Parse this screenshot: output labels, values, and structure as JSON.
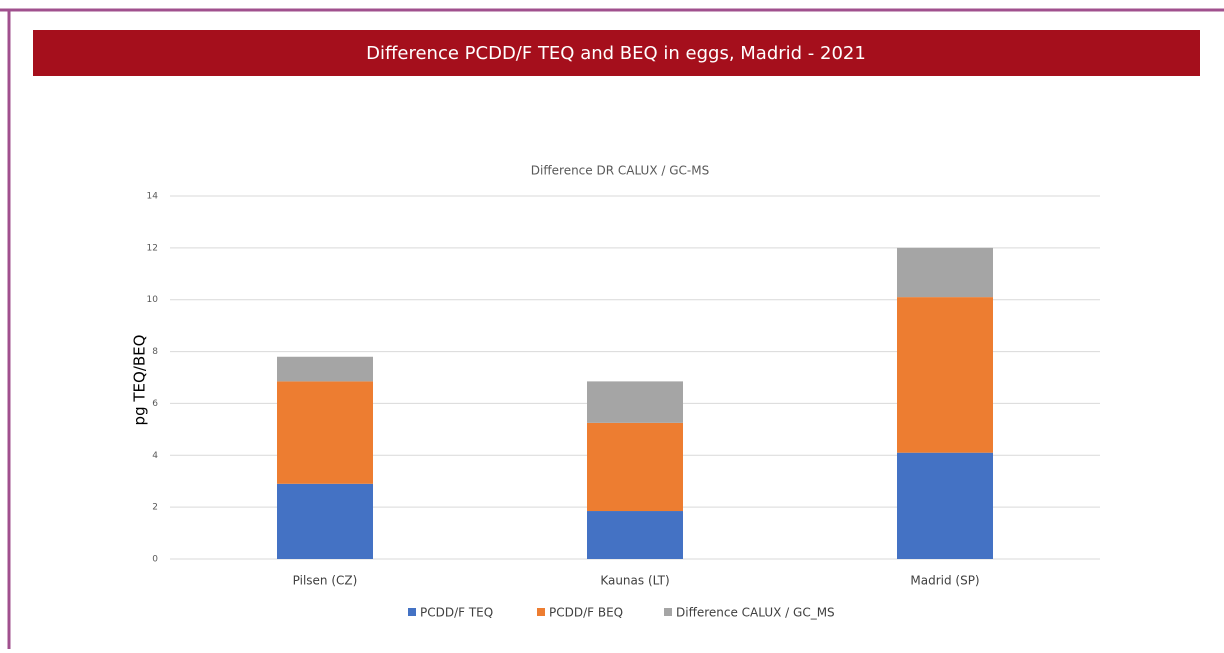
{
  "header": {
    "title": "Difference PCDD/F TEQ and BEQ in eggs, Madrid - 2021"
  },
  "chart_data": {
    "type": "stacked_bar",
    "title": "Difference DR CALUX / GC-MS",
    "y_label": "pg TEQ/BEQ",
    "categories": [
      "Pilsen (CZ)",
      "Kaunas (LT)",
      "Madrid (SP)"
    ],
    "series": [
      {
        "name": "PCDD/F TEQ",
        "color": "#4472c4",
        "values": [
          2.9,
          1.85,
          4.1
        ]
      },
      {
        "name": "PCDD/F BEQ",
        "color": "#ed7d31",
        "values": [
          3.95,
          3.4,
          6.0
        ]
      },
      {
        "name": "Difference CALUX / GC_MS",
        "color": "#a5a5a5",
        "values": [
          0.95,
          1.6,
          1.9
        ]
      }
    ],
    "ylim": [
      0,
      14
    ],
    "yticks": [
      0,
      2,
      4,
      6,
      8,
      10,
      12,
      14
    ],
    "grid": true,
    "legend": "bottom"
  }
}
